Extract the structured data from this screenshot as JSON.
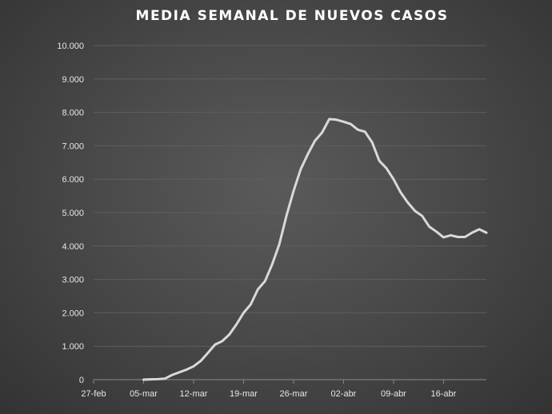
{
  "chart_data": {
    "type": "line",
    "title": "MEDIA SEMANAL DE NUEVOS CASOS",
    "xlabel": "",
    "ylabel": "",
    "ylim": [
      0,
      10000
    ],
    "grid": true,
    "y_ticks": [
      "0",
      "1.000",
      "2.000",
      "3.000",
      "4.000",
      "5.000",
      "6.000",
      "7.000",
      "8.000",
      "9.000",
      "10.000"
    ],
    "x_tick_labels": [
      "27-feb",
      "05-mar",
      "12-mar",
      "19-mar",
      "26-mar",
      "02-abr",
      "09-abr",
      "16-abr"
    ],
    "x_start": "27-feb",
    "line_color": "#d9d9d9",
    "series": [
      {
        "values": [
          null,
          null,
          null,
          null,
          null,
          null,
          null,
          0,
          10,
          15,
          30,
          140,
          220,
          300,
          400,
          560,
          800,
          1050,
          1150,
          1350,
          1650,
          2000,
          2250,
          2700,
          2950,
          3450,
          4050,
          4900,
          5650,
          6300,
          6750,
          7150,
          7400,
          7800,
          7780,
          7720,
          7650,
          7480,
          7420,
          7100,
          6550,
          6330,
          6000,
          5600,
          5300,
          5050,
          4900,
          4580,
          4430,
          4260,
          4320,
          4270,
          4270,
          4400,
          4500,
          4400
        ]
      }
    ]
  }
}
